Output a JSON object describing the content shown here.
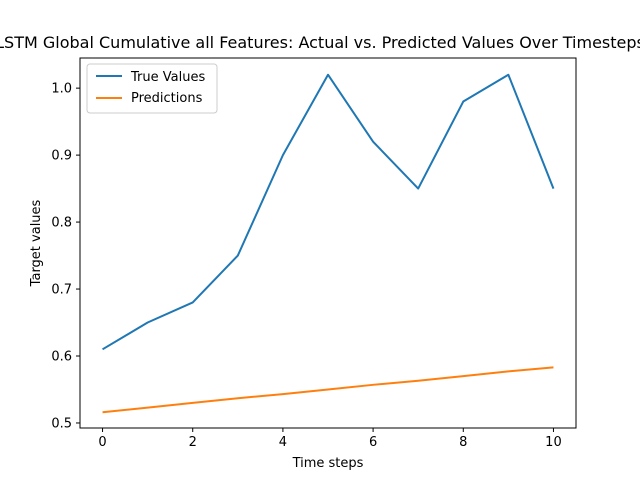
{
  "chart_data": {
    "type": "line",
    "title": "LSTM Global Cumulative all Features: Actual vs. Predicted Values Over Timesteps",
    "xlabel": "Time steps",
    "ylabel": "Target values",
    "x": [
      0,
      1,
      2,
      3,
      4,
      5,
      6,
      7,
      8,
      9,
      10
    ],
    "xlim": [
      -0.5,
      10.5
    ],
    "ylim": [
      0.4925,
      1.045
    ],
    "xticks": [
      0,
      2,
      4,
      6,
      8,
      10
    ],
    "yticks": [
      0.5,
      0.6,
      0.7,
      0.8,
      0.9,
      1.0
    ],
    "xtick_labels": [
      "0",
      "2",
      "4",
      "6",
      "8",
      "10"
    ],
    "ytick_labels": [
      "0.5",
      "0.6",
      "0.7",
      "0.8",
      "0.9",
      "1.0"
    ],
    "grid": false,
    "legend_position": "upper-left",
    "series": [
      {
        "name": "True Values",
        "color": "#1f77b4",
        "values": [
          0.61,
          0.65,
          0.68,
          0.75,
          0.9,
          1.02,
          0.92,
          0.85,
          0.98,
          1.02,
          0.85
        ]
      },
      {
        "name": "Predictions",
        "color": "#ff7f0e",
        "values": [
          0.516,
          0.523,
          0.53,
          0.537,
          0.543,
          0.55,
          0.557,
          0.563,
          0.57,
          0.577,
          0.583
        ]
      }
    ]
  }
}
